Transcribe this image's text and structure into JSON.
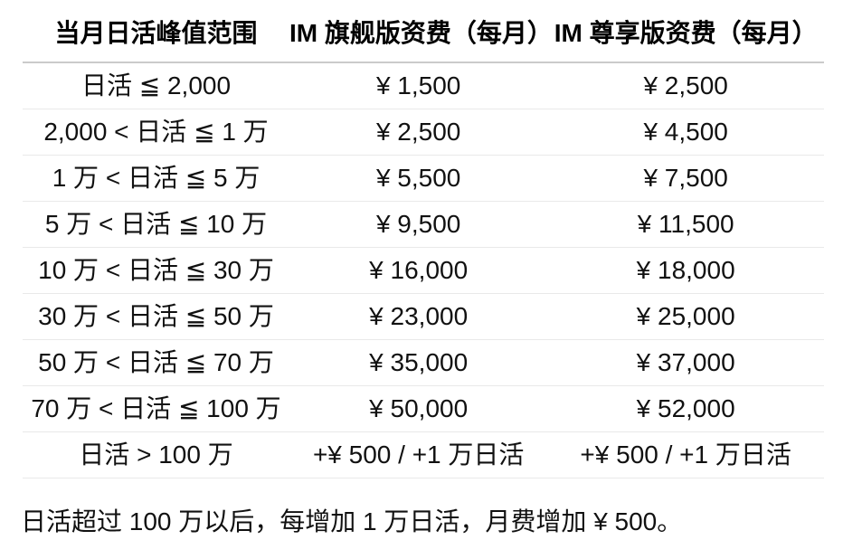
{
  "table": {
    "headers": [
      "当月日活峰值范围",
      "IM 旗舰版资费（每月）",
      "IM 尊享版资费（每月）"
    ],
    "rows": [
      [
        "日活 ≦ 2,000",
        "¥ 1,500",
        "¥ 2,500"
      ],
      [
        "2,000 < 日活 ≦ 1 万",
        "¥ 2,500",
        "¥ 4,500"
      ],
      [
        "1 万 < 日活 ≦ 5 万",
        "¥ 5,500",
        "¥ 7,500"
      ],
      [
        "5 万 < 日活 ≦ 10 万",
        "¥ 9,500",
        "¥ 11,500"
      ],
      [
        "10 万 < 日活 ≦ 30 万",
        "¥ 16,000",
        "¥ 18,000"
      ],
      [
        "30 万 < 日活 ≦ 50 万",
        "¥ 23,000",
        "¥ 25,000"
      ],
      [
        "50 万 < 日活 ≦ 70 万",
        "¥ 35,000",
        "¥ 37,000"
      ],
      [
        "70 万 < 日活 ≦ 100 万",
        "¥ 50,000",
        "¥ 52,000"
      ],
      [
        "日活 > 100 万",
        "+¥ 500 / +1 万日活",
        "+¥ 500 / +1 万日活"
      ]
    ]
  },
  "note": "日活超过 100 万以后，每增加 1 万日活，月费增加 ¥ 500。",
  "colors": {
    "background": "#ffffff",
    "text": "#000000",
    "header_border": "#cbcbcb",
    "row_border": "#e9e9e9"
  }
}
